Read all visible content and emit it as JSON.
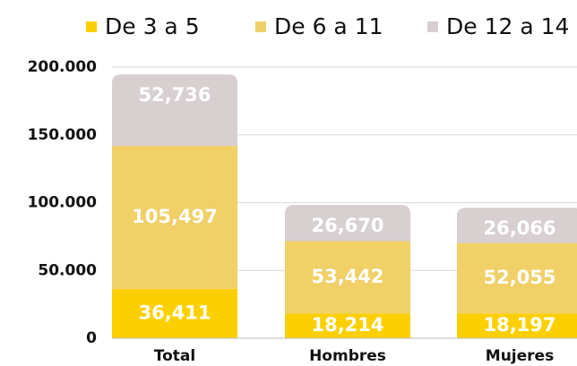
{
  "chart_data": {
    "type": "stacked_bar",
    "categories": [
      "Total",
      "Hombres",
      "Mujeres"
    ],
    "series": [
      {
        "name": "De 3 a 5",
        "color": "#fcd000",
        "values": [
          36411,
          18214,
          18197
        ],
        "value_labels": [
          "36,411",
          "18,214",
          "18,197"
        ]
      },
      {
        "name": "De 6 a 11",
        "color": "#f0d067",
        "values": [
          105497,
          53442,
          52055
        ],
        "value_labels": [
          "105,497",
          "53,442",
          "52,055"
        ]
      },
      {
        "name": "De 12 a 14",
        "color": "#d8cfd0",
        "values": [
          52736,
          26670,
          26066
        ],
        "value_labels": [
          "52,736",
          "26,670",
          "26,066"
        ]
      }
    ],
    "ylim": [
      0,
      200000
    ],
    "yticks": [
      0,
      {
        "value": 50000,
        "label": "50.000"
      },
      {
        "value": 100000,
        "label": "100.000"
      },
      {
        "value": 150000,
        "label": "150.000"
      },
      {
        "value": 200000,
        "label": "200.000"
      }
    ],
    "grid": true,
    "legend": "top"
  }
}
